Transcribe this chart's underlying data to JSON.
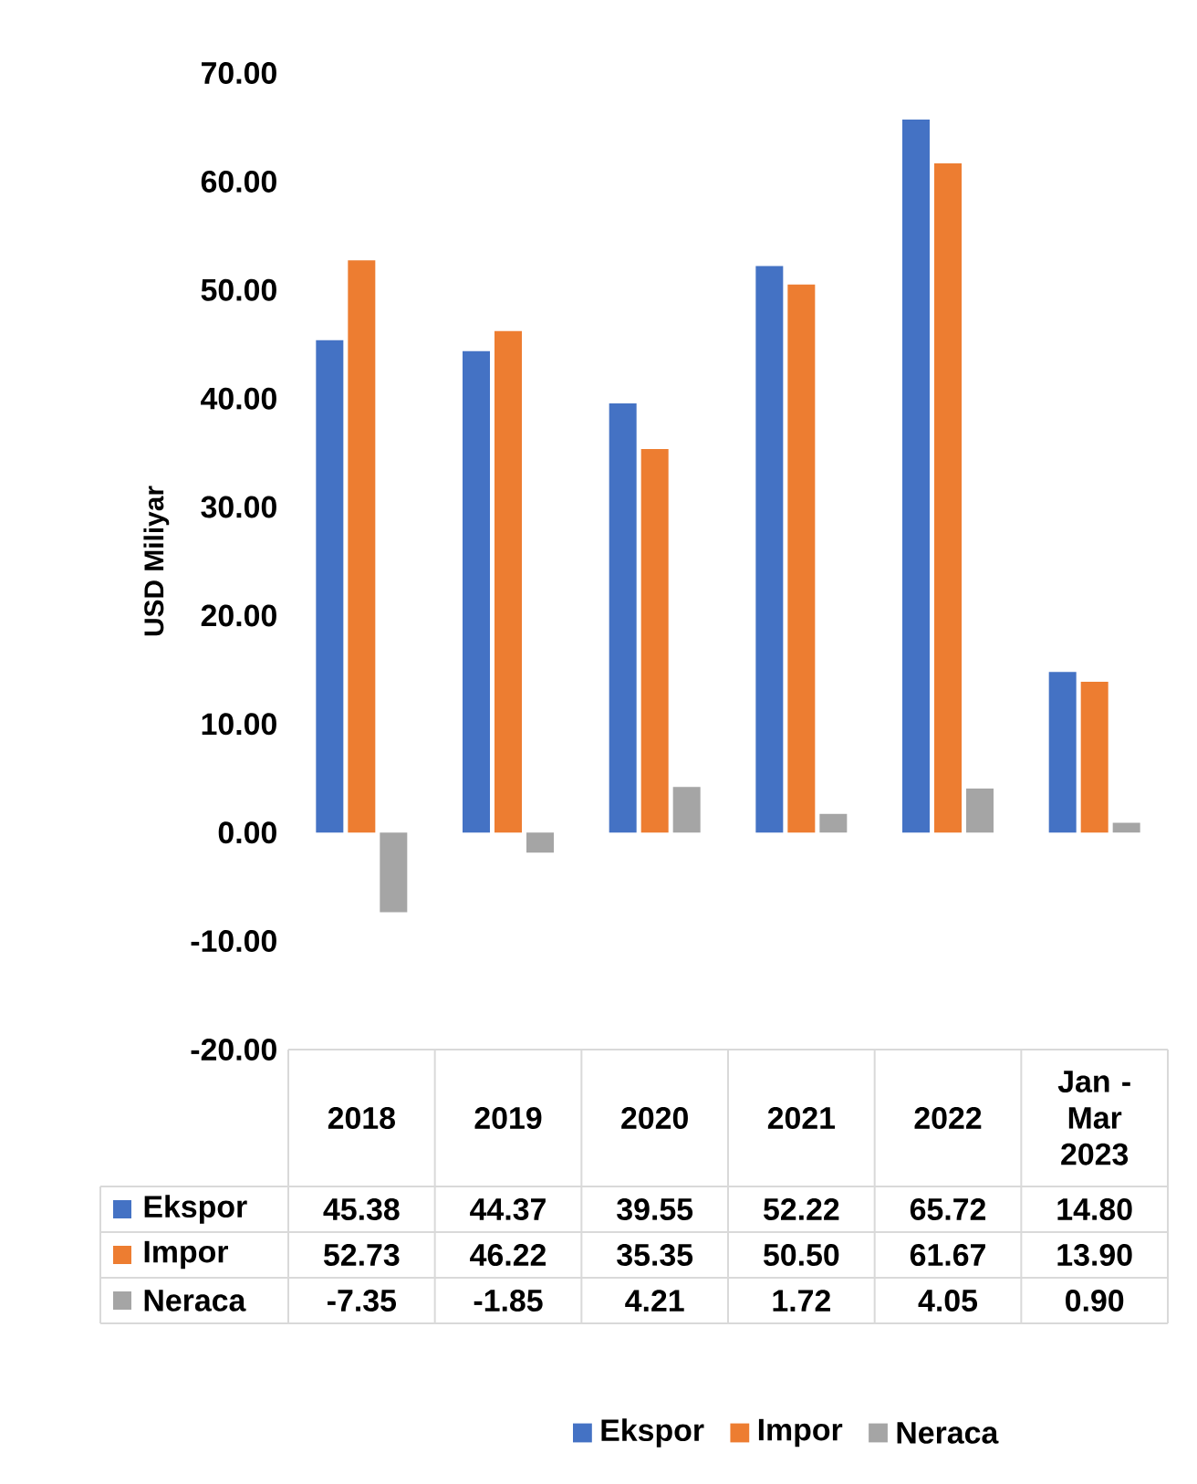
{
  "chart_data": {
    "type": "bar",
    "ylabel": "USD Miliyar",
    "categories": [
      "2018",
      "2019",
      "2020",
      "2021",
      "2022",
      "Jan - Mar 2023"
    ],
    "series": [
      {
        "name": "Ekspor",
        "color": "#4472c4",
        "values": [
          45.38,
          44.37,
          39.55,
          52.22,
          65.72,
          14.8
        ],
        "value_labels": [
          "45.38",
          "44.37",
          "39.55",
          "52.22",
          "65.72",
          "14.80"
        ]
      },
      {
        "name": "Impor",
        "color": "#ed7d31",
        "values": [
          52.73,
          46.22,
          35.35,
          50.5,
          61.67,
          13.9
        ],
        "value_labels": [
          "52.73",
          "46.22",
          "35.35",
          "50.50",
          "61.67",
          "13.90"
        ]
      },
      {
        "name": "Neraca",
        "color": "#a5a5a5",
        "values": [
          -7.35,
          -1.85,
          4.21,
          1.72,
          4.05,
          0.9
        ],
        "value_labels": [
          "-7.35",
          "-1.85",
          "4.21",
          "1.72",
          "4.05",
          "0.90"
        ]
      }
    ],
    "ylim": [
      -20,
      70
    ],
    "yticks": [
      {
        "value": -20,
        "label": "-20.00"
      },
      {
        "value": -10,
        "label": "-10.00"
      },
      {
        "value": 0,
        "label": "0.00"
      },
      {
        "value": 10,
        "label": "10.00"
      },
      {
        "value": 20,
        "label": "20.00"
      },
      {
        "value": 30,
        "label": "30.00"
      },
      {
        "value": 40,
        "label": "40.00"
      },
      {
        "value": 50,
        "label": "50.00"
      },
      {
        "value": 60,
        "label": "60.00"
      },
      {
        "value": 70,
        "label": "70.00"
      }
    ],
    "legend": "bottom"
  }
}
